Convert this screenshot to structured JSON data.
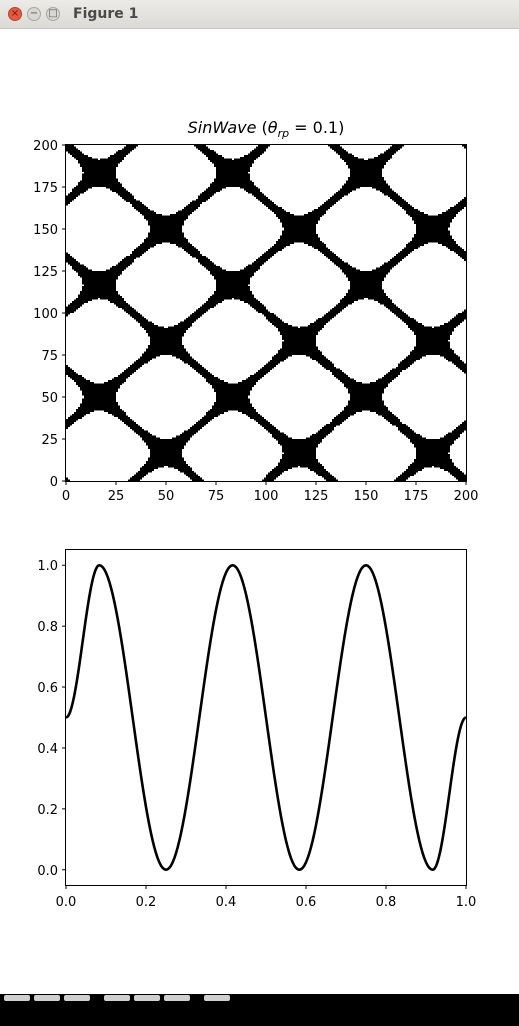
{
  "window": {
    "title": "Figure 1",
    "close_glyph": "×",
    "minimize_glyph": "−",
    "maximize_glyph": "□"
  },
  "chart_data": [
    {
      "type": "heatmap",
      "title_func": "SinWave",
      "title_param": "θ",
      "title_sub": "rp",
      "title_value": "= 0.1)",
      "colors": [
        "#ffffff",
        "#000000"
      ],
      "xlim": [
        0,
        200
      ],
      "ylim": [
        0,
        200
      ],
      "xticks": [
        0,
        25,
        50,
        75,
        100,
        125,
        150,
        175,
        200
      ],
      "yticks": [
        0,
        25,
        50,
        75,
        100,
        125,
        150,
        175,
        200
      ],
      "grid": false
    },
    {
      "type": "line",
      "color": "#000000",
      "xlim": [
        0.0,
        1.0
      ],
      "ylim": [
        -0.05,
        1.05
      ],
      "xticks": [
        "0.0",
        "0.2",
        "0.4",
        "0.6",
        "0.8",
        "1.0"
      ],
      "yticks": [
        "0.0",
        "0.2",
        "0.4",
        "0.6",
        "0.8",
        "1.0"
      ],
      "x": [
        0.0,
        0.0833,
        0.25,
        0.4167,
        0.5833,
        0.75,
        0.9167,
        1.0
      ],
      "y": [
        0.5,
        1.0,
        0.0,
        1.0,
        0.0,
        1.0,
        0.0,
        0.5
      ],
      "grid": false
    }
  ]
}
